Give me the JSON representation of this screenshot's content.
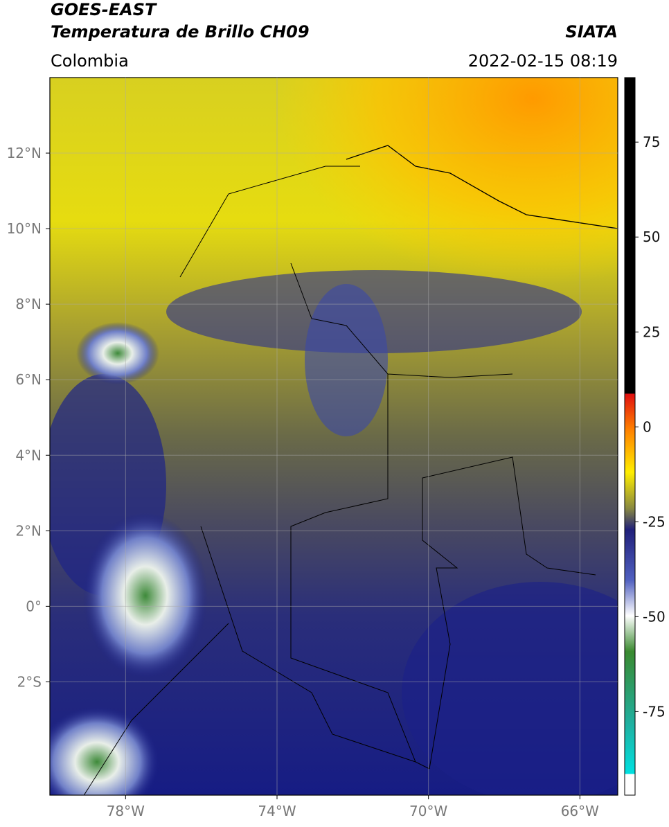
{
  "header": {
    "title": "GOES-EAST",
    "subtitle": "Temperatura de Brillo CH09",
    "source": "SIATA",
    "region": "Colombia",
    "timestamp": "2022-02-15 08:19"
  },
  "map": {
    "xlim": [
      -80,
      -65
    ],
    "ylim": [
      -5,
      14
    ],
    "xticks": [
      {
        "value": -78,
        "label": "78°W"
      },
      {
        "value": -74,
        "label": "74°W"
      },
      {
        "value": -70,
        "label": "70°W"
      },
      {
        "value": -66,
        "label": "66°W"
      }
    ],
    "yticks": [
      {
        "value": 12,
        "label": "12°N"
      },
      {
        "value": 10,
        "label": "10°N"
      },
      {
        "value": 8,
        "label": "8°N"
      },
      {
        "value": 6,
        "label": "6°N"
      },
      {
        "value": 4,
        "label": "4°N"
      },
      {
        "value": 2,
        "label": "2°N"
      },
      {
        "value": 0,
        "label": "0°"
      },
      {
        "value": -2,
        "label": "2°S"
      }
    ]
  },
  "colorbar": {
    "lim": [
      -97,
      92
    ],
    "ticks": [
      75,
      50,
      25,
      0,
      -25,
      -50,
      -75
    ]
  }
}
